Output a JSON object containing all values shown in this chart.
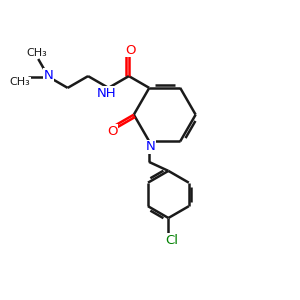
{
  "bg_color": "#ffffff",
  "bond_color": "#1a1a1a",
  "N_color": "#0000ff",
  "O_color": "#ff0000",
  "Cl_color": "#008000",
  "lw": 1.8,
  "xlim": [
    0,
    10
  ],
  "ylim": [
    0,
    10
  ]
}
